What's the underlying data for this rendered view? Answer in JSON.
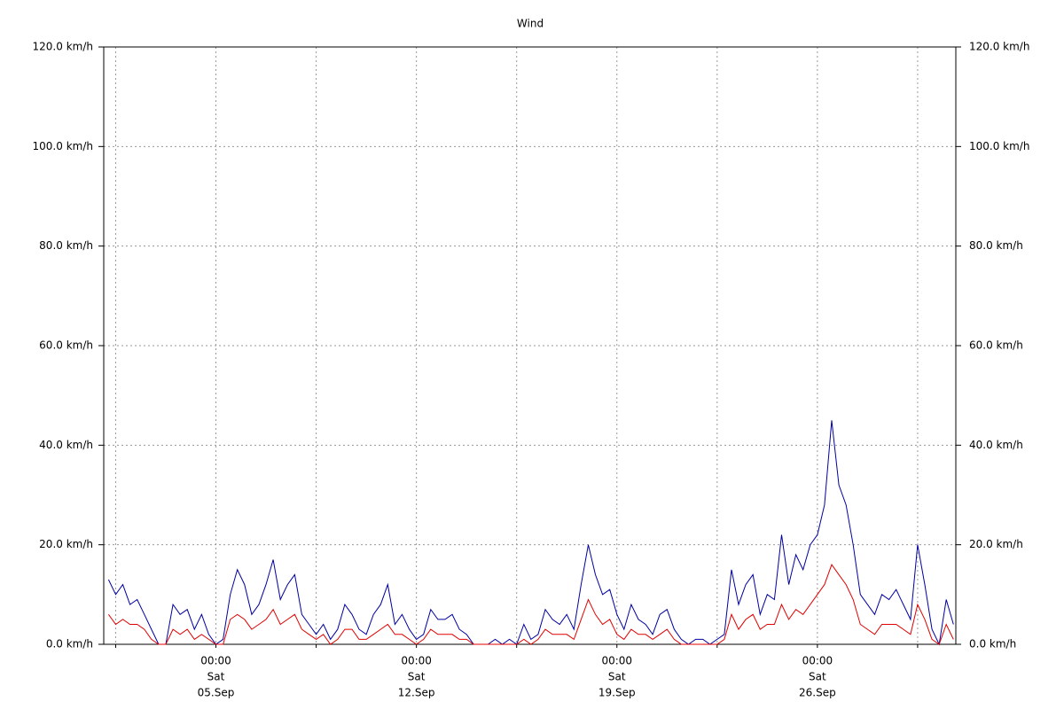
{
  "chart_data": {
    "type": "line",
    "title": "Wind",
    "x": [
      6,
      12,
      18,
      24,
      30,
      36,
      42,
      48,
      54,
      60,
      66,
      72,
      78,
      84,
      90,
      96,
      102,
      108,
      114,
      120,
      126,
      132,
      138,
      144,
      150,
      156,
      162,
      168,
      174,
      180,
      186,
      192,
      198,
      204,
      210,
      216,
      222,
      228,
      234,
      240,
      246,
      252,
      258,
      264,
      270,
      276,
      282,
      288,
      294,
      300,
      306,
      312,
      318,
      324,
      330,
      336,
      342,
      348,
      354,
      360,
      366,
      372,
      378,
      384,
      390,
      396,
      402,
      408,
      414,
      420,
      426,
      432,
      438,
      444,
      450,
      456,
      462,
      468,
      474,
      480,
      486,
      492,
      498,
      504,
      510,
      516,
      522,
      528,
      534,
      540,
      546,
      552,
      558,
      564,
      570,
      576,
      582,
      588,
      594,
      600,
      606,
      612,
      618,
      624,
      630,
      636,
      642,
      648,
      654,
      660,
      666,
      672,
      678,
      684,
      690,
      696,
      702,
      708,
      714
    ],
    "series": [
      {
        "color": "#0000a0",
        "values": [
          13,
          10,
          12,
          8,
          9,
          6,
          3,
          0,
          0,
          8,
          6,
          7,
          3,
          6,
          2,
          0,
          1,
          10,
          15,
          12,
          6,
          8,
          12,
          17,
          9,
          12,
          14,
          6,
          4,
          2,
          4,
          1,
          3,
          8,
          6,
          3,
          2,
          6,
          8,
          12,
          4,
          6,
          3,
          1,
          2,
          7,
          5,
          5,
          6,
          3,
          2,
          0,
          0,
          0,
          1,
          0,
          1,
          0,
          4,
          1,
          2,
          7,
          5,
          4,
          6,
          3,
          12,
          20,
          14,
          10,
          11,
          6,
          3,
          8,
          5,
          4,
          2,
          6,
          7,
          3,
          1,
          0,
          1,
          1,
          0,
          1,
          2,
          15,
          8,
          12,
          14,
          6,
          10,
          9,
          22,
          12,
          18,
          15,
          20,
          22,
          28,
          45,
          32,
          28,
          20,
          10,
          8,
          6,
          10,
          9,
          11,
          8,
          5,
          20,
          12,
          3,
          0,
          9,
          4
        ]
      },
      {
        "color": "#e00000",
        "values": [
          6,
          4,
          5,
          4,
          4,
          3,
          1,
          0,
          0,
          3,
          2,
          3,
          1,
          2,
          1,
          0,
          0,
          5,
          6,
          5,
          3,
          4,
          5,
          7,
          4,
          5,
          6,
          3,
          2,
          1,
          2,
          0,
          1,
          3,
          3,
          1,
          1,
          2,
          3,
          4,
          2,
          2,
          1,
          0,
          1,
          3,
          2,
          2,
          2,
          1,
          1,
          0,
          0,
          0,
          0,
          0,
          0,
          0,
          1,
          0,
          1,
          3,
          2,
          2,
          2,
          1,
          5,
          9,
          6,
          4,
          5,
          2,
          1,
          3,
          2,
          2,
          1,
          2,
          3,
          1,
          0,
          0,
          0,
          0,
          0,
          0,
          1,
          6,
          3,
          5,
          6,
          3,
          4,
          4,
          8,
          5,
          7,
          6,
          8,
          10,
          12,
          16,
          14,
          12,
          9,
          4,
          3,
          2,
          4,
          4,
          4,
          3,
          2,
          8,
          5,
          1,
          0,
          4,
          1
        ]
      }
    ],
    "xlim": [
      2,
      716
    ],
    "xticks": [
      {
        "value": 96,
        "label": [
          "00:00",
          "Sat",
          "05.Sep"
        ]
      },
      {
        "value": 264,
        "label": [
          "00:00",
          "Sat",
          "12.Sep"
        ]
      },
      {
        "value": 432,
        "label": [
          "00:00",
          "Sat",
          "19.Sep"
        ]
      },
      {
        "value": 600,
        "label": [
          "00:00",
          "Sat",
          "26.Sep"
        ]
      }
    ],
    "xminor": [
      12,
      180,
      348,
      516,
      684
    ],
    "ylim": [
      0,
      120
    ],
    "yticks": [
      {
        "value": 0,
        "label": "0.0 km/h"
      },
      {
        "value": 20,
        "label": "20.0 km/h"
      },
      {
        "value": 40,
        "label": "40.0 km/h"
      },
      {
        "value": 60,
        "label": "60.0 km/h"
      },
      {
        "value": 80,
        "label": "80.0 km/h"
      },
      {
        "value": 100,
        "label": "100.0 km/h"
      },
      {
        "value": 120,
        "label": "120.0 km/h"
      }
    ],
    "grid": true
  }
}
